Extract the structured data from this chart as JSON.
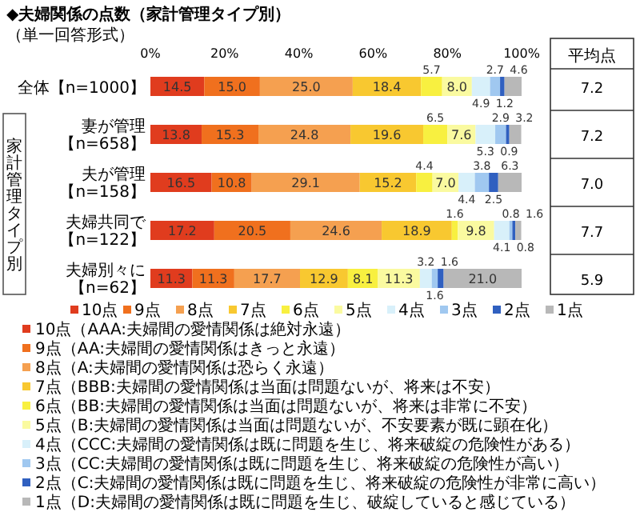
{
  "chart_data": {
    "type": "bar",
    "orientation": "horizontal",
    "stacked": true,
    "title": "◆夫婦関係の点数（家計管理タイプ別）",
    "subtitle": "（単一回答形式）",
    "ylabel": "家計管理タイプ別",
    "categories": [
      "全体【n=1000】",
      "妻が管理【n=658】",
      "夫が管理【n=158】",
      "夫婦共同で【n=122】",
      "夫婦別々に【n=62】"
    ],
    "xlim": [
      0,
      100
    ],
    "xticks": [
      {
        "value": 0,
        "label": "0%"
      },
      {
        "value": 20,
        "label": "20%"
      },
      {
        "value": 40,
        "label": "40%"
      },
      {
        "value": 60,
        "label": "60%"
      },
      {
        "value": 80,
        "label": "80%"
      },
      {
        "value": 100,
        "label": "100%"
      }
    ],
    "series": [
      {
        "name": "10点",
        "color": "#e03c1e",
        "values": [
          14.5,
          13.8,
          16.5,
          17.2,
          11.3
        ],
        "value_labels": [
          "14.5",
          "13.8",
          "16.5",
          "17.2",
          "11.3"
        ]
      },
      {
        "name": "9点",
        "color": "#f0701e",
        "values": [
          15.0,
          15.3,
          10.8,
          20.5,
          11.3
        ],
        "value_labels": [
          "15.0",
          "15.3",
          "10.8",
          "20.5",
          "11.3"
        ]
      },
      {
        "name": "8点",
        "color": "#f5a050",
        "values": [
          25.0,
          24.8,
          29.1,
          24.6,
          17.7
        ],
        "value_labels": [
          "25.0",
          "24.8",
          "29.1",
          "24.6",
          "17.7"
        ]
      },
      {
        "name": "7点",
        "color": "#f8c830",
        "values": [
          18.4,
          19.6,
          15.2,
          18.9,
          12.9
        ],
        "value_labels": [
          "18.4",
          "19.6",
          "15.2",
          "18.9",
          "12.9"
        ]
      },
      {
        "name": "6点",
        "color": "#f8f040",
        "values": [
          5.7,
          6.5,
          4.4,
          1.6,
          8.1
        ],
        "value_labels": [
          "5.7",
          "6.5",
          "4.4",
          "1.6",
          "8.1"
        ]
      },
      {
        "name": "5点",
        "color": "#fafaa0",
        "values": [
          8.0,
          7.6,
          7.0,
          9.8,
          11.3
        ],
        "value_labels": [
          "8.0",
          "7.6",
          "7.0",
          "9.8",
          "11.3"
        ]
      },
      {
        "name": "4点",
        "color": "#d8f0fa",
        "values": [
          4.9,
          5.3,
          4.4,
          4.1,
          3.2
        ],
        "value_labels": [
          "4.9",
          "5.3",
          "4.4",
          "4.1",
          "3.2"
        ]
      },
      {
        "name": "3点",
        "color": "#a0c8f0",
        "values": [
          2.7,
          2.9,
          3.8,
          0.8,
          1.6
        ],
        "value_labels": [
          "2.7",
          "2.9",
          "3.8",
          "0.8",
          "1.6"
        ]
      },
      {
        "name": "2点",
        "color": "#3060c0",
        "values": [
          1.2,
          0.9,
          2.5,
          0.8,
          1.6
        ],
        "value_labels": [
          "1.2",
          "0.9",
          "2.5",
          "0.8",
          "1.6"
        ]
      },
      {
        "name": "1点",
        "color": "#b8b8b8",
        "values": [
          4.6,
          3.2,
          6.3,
          1.6,
          21.0
        ],
        "value_labels": [
          "4.6",
          "3.2",
          "6.3",
          "1.6",
          "21.0"
        ]
      }
    ],
    "legend": "bottom",
    "annotations": [
      "平均点",
      "7.2",
      "7.2",
      "7.0",
      "7.7",
      "5.9",
      "10点（AAA:夫婦間の愛情関係は絶対永遠）",
      "9点（AA:夫婦間の愛情関係はきっと永遠）",
      "8点（A:夫婦間の愛情関係は恐らく永遠）",
      "7点（BBB:夫婦間の愛情関係は当面は問題ないが、将来は不安）",
      "6点（BB:夫婦間の愛情関係は当面は問題ないが、将来は非常に不安）",
      "5点（B:夫婦間の愛情関係は当面は問題ないが、不安要素が既に顕在化）",
      "4点（CCC:夫婦間の愛情関係は既に問題を生じ、将来破綻の危険性がある）",
      "3点（CC:夫婦間の愛情関係は既に問題を生じ、将来破綻の危険性が高い）",
      "2点（C:夫婦間の愛情関係は既に問題を生じ、将来破綻の危険性が非常に高い）",
      "1点（D:夫婦間の愛情関係は既に問題を生じ、破綻していると感じている）"
    ]
  }
}
